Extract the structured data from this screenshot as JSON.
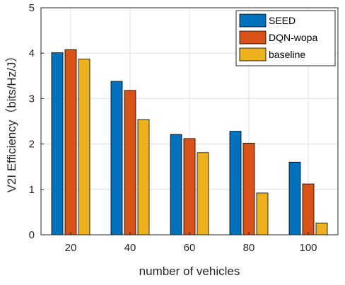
{
  "chart_data": {
    "type": "bar",
    "categories": [
      "20",
      "40",
      "60",
      "80",
      "100"
    ],
    "series": [
      {
        "name": "SEED",
        "color": "#0072BD",
        "values": [
          4.01,
          3.38,
          2.21,
          2.28,
          1.6
        ]
      },
      {
        "name": "DQN-wopa",
        "color": "#D95319",
        "values": [
          4.08,
          3.18,
          2.12,
          2.02,
          1.12
        ]
      },
      {
        "name": "baseline",
        "color": "#EDB120",
        "values": [
          3.87,
          2.54,
          1.81,
          0.92,
          0.26
        ]
      }
    ],
    "xlabel": "number of vehicles",
    "ylabel": "V2I Efficiency（bits/Hz/J）",
    "ylim": [
      0,
      5
    ],
    "yticks": [
      "0",
      "1",
      "2",
      "3",
      "4",
      "5"
    ],
    "grid": true,
    "legend_position": "top-right"
  }
}
